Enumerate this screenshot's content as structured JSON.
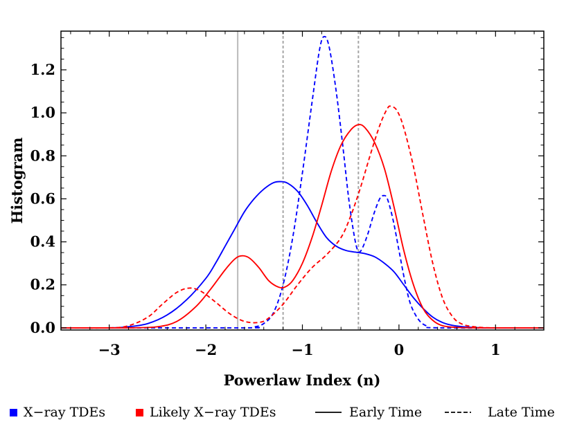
{
  "chart_data": {
    "type": "line",
    "xlabel": "Powerlaw Index (n)",
    "ylabel": "Histogram",
    "xlim": [
      -3.5,
      1.5
    ],
    "ylim": [
      -0.01,
      1.38
    ],
    "x_ticks": [
      -3,
      -2,
      -1,
      0,
      1
    ],
    "x_tick_labels": [
      "−3",
      "−2",
      "−1",
      "0",
      "1"
    ],
    "y_ticks": [
      0.0,
      0.2,
      0.4,
      0.6,
      0.8,
      1.0,
      1.2
    ],
    "y_tick_labels": [
      "0.0",
      "0.2",
      "0.4",
      "0.6",
      "0.8",
      "1.0",
      "1.2"
    ],
    "grid": false,
    "legend_position": "bottom",
    "colors": {
      "xray": "#0000ff",
      "likely": "#ff0000",
      "solid_vline": "#bfbfbf",
      "dashed_vline": "#a6a6a6"
    },
    "vertical_lines": [
      {
        "x": -1.67,
        "style": "solid"
      },
      {
        "x": -1.2,
        "style": "dashed"
      },
      {
        "x": -0.42,
        "style": "dashed"
      }
    ],
    "series": [
      {
        "group": "xray",
        "style": "solid",
        "points": [
          [
            -3.5,
            0
          ],
          [
            -3,
            0
          ],
          [
            -2.8,
            0.005
          ],
          [
            -2.6,
            0.02
          ],
          [
            -2.4,
            0.06
          ],
          [
            -2.2,
            0.13
          ],
          [
            -2.0,
            0.23
          ],
          [
            -1.9,
            0.3
          ],
          [
            -1.8,
            0.38
          ],
          [
            -1.7,
            0.46
          ],
          [
            -1.6,
            0.54
          ],
          [
            -1.5,
            0.6
          ],
          [
            -1.4,
            0.645
          ],
          [
            -1.3,
            0.675
          ],
          [
            -1.22,
            0.68
          ],
          [
            -1.15,
            0.672
          ],
          [
            -1.05,
            0.635
          ],
          [
            -0.95,
            0.57
          ],
          [
            -0.85,
            0.49
          ],
          [
            -0.75,
            0.42
          ],
          [
            -0.65,
            0.38
          ],
          [
            -0.55,
            0.36
          ],
          [
            -0.45,
            0.352
          ],
          [
            -0.35,
            0.345
          ],
          [
            -0.25,
            0.33
          ],
          [
            -0.15,
            0.3
          ],
          [
            -0.05,
            0.26
          ],
          [
            0.05,
            0.2
          ],
          [
            0.15,
            0.14
          ],
          [
            0.25,
            0.09
          ],
          [
            0.35,
            0.05
          ],
          [
            0.45,
            0.025
          ],
          [
            0.55,
            0.012
          ],
          [
            0.7,
            0.004
          ],
          [
            0.9,
            0
          ],
          [
            1.5,
            0
          ]
        ]
      },
      {
        "group": "xray",
        "style": "dashed",
        "points": [
          [
            -3.5,
            0
          ],
          [
            -1.6,
            0
          ],
          [
            -1.5,
            0.004
          ],
          [
            -1.4,
            0.02
          ],
          [
            -1.3,
            0.07
          ],
          [
            -1.2,
            0.2
          ],
          [
            -1.1,
            0.42
          ],
          [
            -1.0,
            0.72
          ],
          [
            -0.9,
            1.05
          ],
          [
            -0.82,
            1.3
          ],
          [
            -0.77,
            1.355
          ],
          [
            -0.72,
            1.3
          ],
          [
            -0.65,
            1.1
          ],
          [
            -0.58,
            0.84
          ],
          [
            -0.52,
            0.6
          ],
          [
            -0.46,
            0.42
          ],
          [
            -0.42,
            0.355
          ],
          [
            -0.38,
            0.37
          ],
          [
            -0.32,
            0.44
          ],
          [
            -0.26,
            0.53
          ],
          [
            -0.2,
            0.6
          ],
          [
            -0.16,
            0.615
          ],
          [
            -0.12,
            0.6
          ],
          [
            -0.06,
            0.5
          ],
          [
            0.0,
            0.36
          ],
          [
            0.06,
            0.22
          ],
          [
            0.12,
            0.11
          ],
          [
            0.2,
            0.04
          ],
          [
            0.28,
            0.01
          ],
          [
            0.4,
            0
          ],
          [
            1.5,
            0
          ]
        ]
      },
      {
        "group": "likely",
        "style": "solid",
        "points": [
          [
            -3.5,
            0
          ],
          [
            -2.8,
            0
          ],
          [
            -2.5,
            0.005
          ],
          [
            -2.3,
            0.03
          ],
          [
            -2.1,
            0.1
          ],
          [
            -1.95,
            0.18
          ],
          [
            -1.8,
            0.27
          ],
          [
            -1.7,
            0.32
          ],
          [
            -1.63,
            0.335
          ],
          [
            -1.55,
            0.325
          ],
          [
            -1.45,
            0.28
          ],
          [
            -1.35,
            0.22
          ],
          [
            -1.25,
            0.19
          ],
          [
            -1.18,
            0.19
          ],
          [
            -1.1,
            0.22
          ],
          [
            -1.0,
            0.3
          ],
          [
            -0.9,
            0.42
          ],
          [
            -0.8,
            0.57
          ],
          [
            -0.7,
            0.73
          ],
          [
            -0.6,
            0.85
          ],
          [
            -0.5,
            0.92
          ],
          [
            -0.42,
            0.945
          ],
          [
            -0.35,
            0.93
          ],
          [
            -0.25,
            0.86
          ],
          [
            -0.15,
            0.74
          ],
          [
            -0.05,
            0.56
          ],
          [
            0.05,
            0.36
          ],
          [
            0.15,
            0.2
          ],
          [
            0.25,
            0.09
          ],
          [
            0.35,
            0.035
          ],
          [
            0.45,
            0.01
          ],
          [
            0.6,
            0.002
          ],
          [
            0.8,
            0
          ],
          [
            1.5,
            0
          ]
        ]
      },
      {
        "group": "likely",
        "style": "dashed",
        "points": [
          [
            -3.5,
            0
          ],
          [
            -3.0,
            0
          ],
          [
            -2.8,
            0.01
          ],
          [
            -2.6,
            0.05
          ],
          [
            -2.45,
            0.11
          ],
          [
            -2.3,
            0.165
          ],
          [
            -2.17,
            0.185
          ],
          [
            -2.05,
            0.17
          ],
          [
            -1.9,
            0.12
          ],
          [
            -1.75,
            0.065
          ],
          [
            -1.6,
            0.03
          ],
          [
            -1.45,
            0.025
          ],
          [
            -1.35,
            0.045
          ],
          [
            -1.2,
            0.11
          ],
          [
            -1.05,
            0.2
          ],
          [
            -0.9,
            0.28
          ],
          [
            -0.75,
            0.34
          ],
          [
            -0.6,
            0.42
          ],
          [
            -0.5,
            0.52
          ],
          [
            -0.4,
            0.65
          ],
          [
            -0.3,
            0.8
          ],
          [
            -0.2,
            0.94
          ],
          [
            -0.12,
            1.02
          ],
          [
            -0.08,
            1.03
          ],
          [
            -0.02,
            1.01
          ],
          [
            0.05,
            0.93
          ],
          [
            0.15,
            0.75
          ],
          [
            0.25,
            0.52
          ],
          [
            0.35,
            0.3
          ],
          [
            0.45,
            0.14
          ],
          [
            0.55,
            0.055
          ],
          [
            0.65,
            0.018
          ],
          [
            0.8,
            0.004
          ],
          [
            1.0,
            0
          ],
          [
            1.5,
            0
          ]
        ]
      }
    ]
  },
  "legend": {
    "items": [
      {
        "label": "X−ray TDEs",
        "kind": "square",
        "color": "#0000ff"
      },
      {
        "label": "Likely X−ray TDEs",
        "kind": "square",
        "color": "#ff0000"
      },
      {
        "label": "Early Time",
        "kind": "solid-line",
        "color": "#000000"
      },
      {
        "label": "Late Time",
        "kind": "dashed-line",
        "color": "#000000"
      }
    ]
  }
}
